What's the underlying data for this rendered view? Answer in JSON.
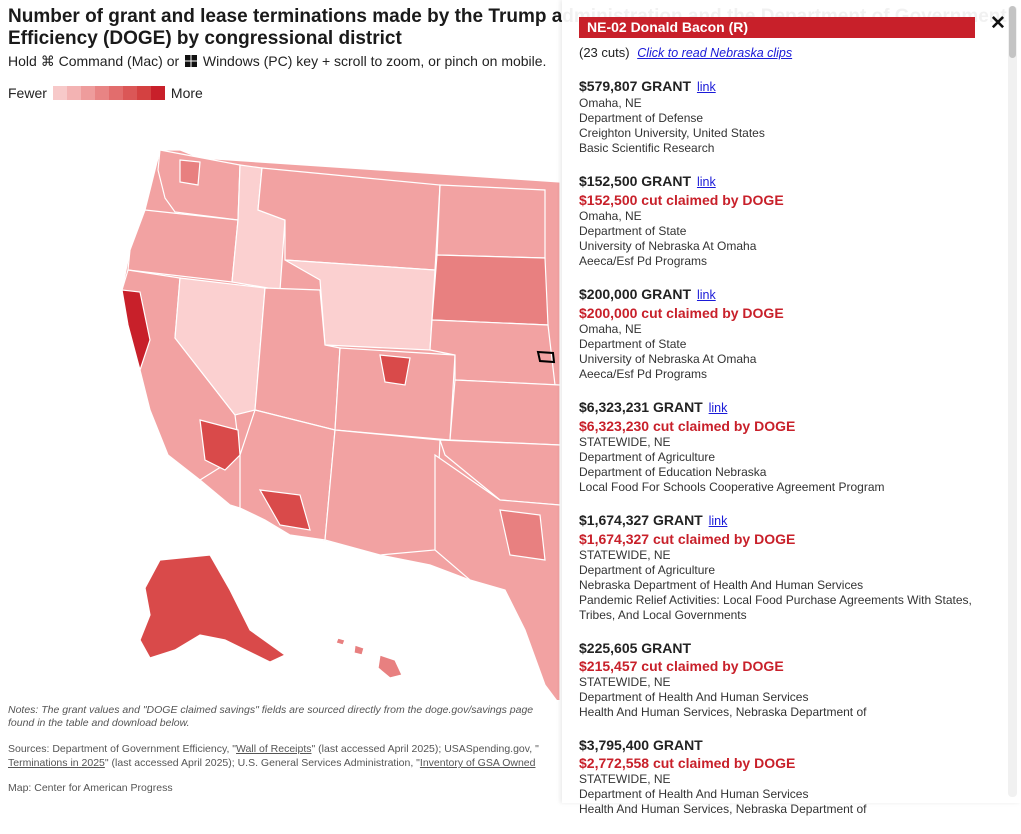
{
  "title": "Number of grant and lease terminations made by the Trump administration and the Department of Government Efficiency (DOGE) by congressional district",
  "instructions": {
    "before": "Hold ",
    "cmd_glyph": "⌘",
    "mid": " Command (Mac) or ",
    "after": " Windows (PC) key + scroll to zoom, or pinch on mobile."
  },
  "legend": {
    "fewer": "Fewer",
    "more": "More",
    "colors": [
      "#f7c9c9",
      "#f3b3b3",
      "#ee9c9c",
      "#e88484",
      "#e26d6d",
      "#db5757",
      "#d44141",
      "#c8202a"
    ]
  },
  "notes": "Notes: The grant values and \"DOGE claimed savings\" fields are sourced directly from the doge.gov/savings page",
  "notes_2": "found in the table and download below.",
  "sources": {
    "prefix": "Sources: Department of Government Efficiency, \"",
    "link1": "Wall of Receipts",
    "mid1": "\" (last accessed April 2025); USASpending.gov, \"",
    "link2": "Terminations in 2025",
    "mid2": "\" (last accessed April 2025); U.S. General Services Administration, \"",
    "link3": "Inventory of GSA Owned"
  },
  "credit": "Map: Center for American Progress",
  "map_colors": {
    "light": "#fbd0d0",
    "mid": "#f2a2a2",
    "darker": "#e88080",
    "dark": "#d94a4a",
    "darkest": "#c8202a",
    "border": "#ffffff"
  },
  "panel": {
    "district": "NE-02 Donald Bacon (R)",
    "cuts": "(23 cuts)",
    "clips_link": "Click to read Nebraska clips",
    "close": "✕",
    "grants": [
      {
        "amount": "$579,807 GRANT",
        "link": "link",
        "claimed": "",
        "location": "Omaha, NE",
        "agency": "Department of Defense",
        "recipient": "Creighton University, United States",
        "program": "Basic Scientific Research"
      },
      {
        "amount": "$152,500 GRANT",
        "link": "link",
        "claimed": "$152,500 cut claimed by DOGE",
        "location": "Omaha, NE",
        "agency": "Department of State",
        "recipient": "University of Nebraska At Omaha",
        "program": "Aeeca/Esf Pd Programs"
      },
      {
        "amount": "$200,000 GRANT",
        "link": "link",
        "claimed": "$200,000 cut claimed by DOGE",
        "location": "Omaha, NE",
        "agency": "Department of State",
        "recipient": "University of Nebraska At Omaha",
        "program": "Aeeca/Esf Pd Programs"
      },
      {
        "amount": "$6,323,231 GRANT",
        "link": "link",
        "claimed": "$6,323,230 cut claimed by DOGE",
        "location": "STATEWIDE, NE",
        "agency": "Department of Agriculture",
        "recipient": "Department of Education Nebraska",
        "program": "Local Food For Schools Cooperative Agreement Program"
      },
      {
        "amount": "$1,674,327 GRANT",
        "link": "link",
        "claimed": "$1,674,327 cut claimed by DOGE",
        "location": "STATEWIDE, NE",
        "agency": "Department of Agriculture",
        "recipient": "Nebraska Department of Health And Human Services",
        "program": "Pandemic Relief Activities: Local Food Purchase Agreements With States, Tribes, And Local Governments"
      },
      {
        "amount": "$225,605 GRANT",
        "link": "",
        "claimed": "$215,457 cut claimed by DOGE",
        "location": "STATEWIDE, NE",
        "agency": "Department of Health And Human Services",
        "recipient": "Health And Human Services, Nebraska Department of",
        "program": ""
      },
      {
        "amount": "$3,795,400 GRANT",
        "link": "",
        "claimed": "$2,772,558 cut claimed by DOGE",
        "location": "STATEWIDE, NE",
        "agency": "Department of Health And Human Services",
        "recipient": "Health And Human Services, Nebraska Department of",
        "program": ""
      }
    ]
  }
}
